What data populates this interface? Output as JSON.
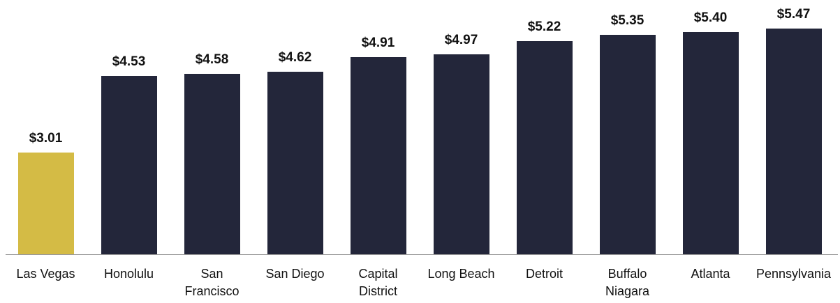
{
  "chart_data": {
    "type": "bar",
    "categories": [
      "Las Vegas",
      "Honolulu",
      "San Francisco",
      "San Diego",
      "Capital District",
      "Long Beach",
      "Detroit",
      "Buffalo Niagara",
      "Atlanta",
      "Pennsylvania"
    ],
    "values": [
      3.01,
      4.53,
      4.58,
      4.62,
      4.91,
      4.97,
      5.22,
      5.35,
      5.4,
      5.47
    ],
    "value_labels": [
      "$3.01",
      "$4.53",
      "$4.58",
      "$4.62",
      "$4.91",
      "$4.97",
      "$5.22",
      "$5.35",
      "$5.40",
      "$5.47"
    ],
    "colors": [
      "#d4bb45",
      "#23263a",
      "#23263a",
      "#23263a",
      "#23263a",
      "#23263a",
      "#23263a",
      "#23263a",
      "#23263a",
      "#23263a"
    ],
    "ylim": [
      1,
      6
    ]
  }
}
